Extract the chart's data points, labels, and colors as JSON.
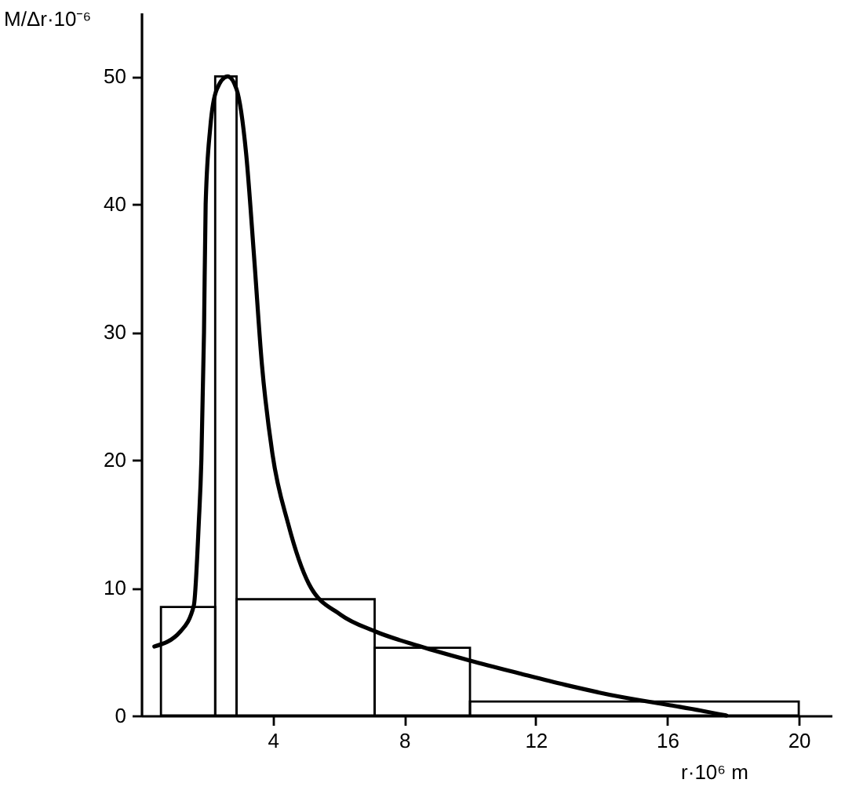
{
  "chart_data": {
    "type": "histogram",
    "xlabel": "r·10⁶ m",
    "ylabel": "M/Δr·10⁻⁶",
    "series": [
      {
        "color": "#000000",
        "bins": [
          0.6,
          2.25,
          2.9,
          7.1,
          10,
          20
        ],
        "values": [
          8.5,
          50,
          9.1,
          5.3,
          1.1
        ]
      },
      {
        "type": "line",
        "color": "#000000",
        "x": [
          0.4,
          1.2,
          1.6,
          1.75,
          1.83,
          1.91,
          1.96,
          2.1,
          2.3,
          2.63,
          2.9,
          3.19,
          3.43,
          3.67,
          3.99,
          4.47,
          5.1,
          6.06,
          7.1,
          8.5,
          10.0,
          11.5,
          12.9,
          14.5,
          16.1,
          17.0,
          17.8
        ],
        "values": [
          5.4,
          6.6,
          8.6,
          15,
          20,
          30,
          40,
          46,
          49,
          50,
          49,
          44,
          36,
          27.5,
          20.5,
          15,
          10.3,
          7.9,
          6.6,
          5.4,
          4.3,
          3.3,
          2.4,
          1.5,
          0.8,
          0.4,
          0
        ]
      }
    ],
    "xlim": [
      0,
      21
    ],
    "ylim": [
      0,
      55
    ],
    "xticks": [
      4,
      8,
      12,
      16,
      20
    ],
    "yticks": [
      0,
      10,
      20,
      30,
      40,
      50
    ]
  }
}
